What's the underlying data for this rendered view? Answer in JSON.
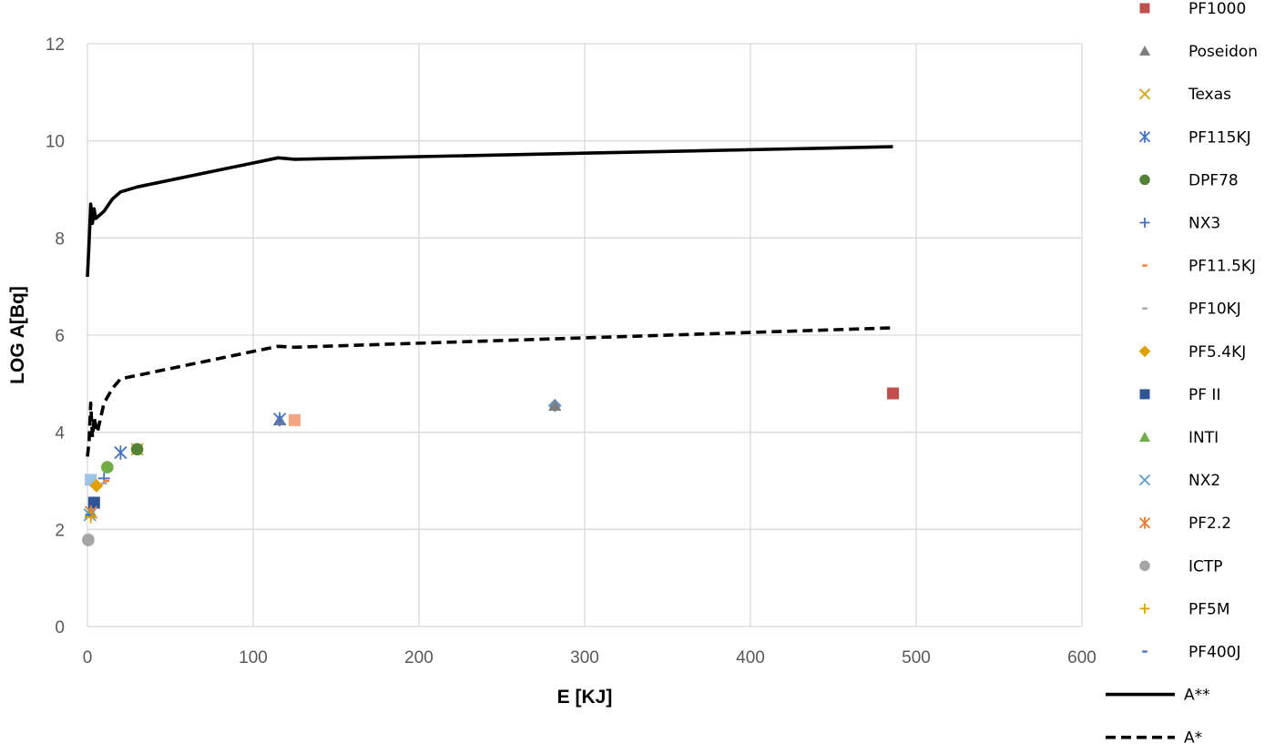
{
  "chart_data": {
    "type": "scatter",
    "title": "",
    "xlabel": "E [KJ]",
    "ylabel": "LOG A[Bq]",
    "xlim": [
      0,
      600
    ],
    "ylim": [
      0,
      12
    ],
    "xticks": [
      0,
      100,
      200,
      300,
      400,
      500,
      600
    ],
    "yticks": [
      0,
      2,
      4,
      6,
      8,
      10,
      12
    ],
    "grid": true,
    "legend_position": "right",
    "series": [
      {
        "name": "PF1000",
        "marker": "square",
        "color": "#c0504d",
        "points": [
          [
            486,
            4.8
          ]
        ]
      },
      {
        "name": "Poseidon",
        "marker": "triangle",
        "color": "#7f7f7f",
        "points": [
          [
            116,
            4.25
          ],
          [
            282,
            4.55
          ]
        ]
      },
      {
        "name": "Texas",
        "marker": "x",
        "color": "#d4a017",
        "points": [
          [
            30,
            3.65
          ]
        ]
      },
      {
        "name": "PF115KJ",
        "marker": "star",
        "color": "#4472c4",
        "points": [
          [
            116,
            4.27
          ],
          [
            20,
            3.58
          ]
        ]
      },
      {
        "name": "DPF78",
        "marker": "circle",
        "color": "#548235",
        "points": [
          [
            30,
            3.65
          ]
        ]
      },
      {
        "name": "NX3",
        "marker": "plus",
        "color": "#4472c4",
        "points": [
          [
            10,
            3.05
          ]
        ]
      },
      {
        "name": "PF11.5KJ",
        "marker": "dash",
        "color": "#ed7d31",
        "points": [
          [
            11.5,
            3.0
          ]
        ]
      },
      {
        "name": "PF10KJ",
        "marker": "dash",
        "color": "#a5a5a5",
        "points": [
          [
            10,
            2.95
          ]
        ]
      },
      {
        "name": "PF5.4KJ",
        "marker": "diamond",
        "color": "#e0a000",
        "points": [
          [
            5.4,
            2.9
          ]
        ]
      },
      {
        "name": "PF II",
        "marker": "square",
        "color": "#2f5597",
        "points": [
          [
            4,
            2.55
          ]
        ]
      },
      {
        "name": "INTI",
        "marker": "triangle",
        "color": "#70ad47",
        "points": [
          [
            2,
            2.35
          ]
        ]
      },
      {
        "name": "NX2",
        "marker": "x",
        "color": "#5b9bd5",
        "points": [
          [
            1.5,
            2.3
          ]
        ]
      },
      {
        "name": "PF2.2",
        "marker": "star",
        "color": "#ed7d31",
        "points": [
          [
            2.2,
            2.35
          ]
        ]
      },
      {
        "name": "ICTP",
        "marker": "circle",
        "color": "#a5a5a5",
        "points": [
          [
            0.5,
            1.78
          ]
        ]
      },
      {
        "name": "PF5M",
        "marker": "plus",
        "color": "#e0a000",
        "points": [
          [
            2,
            2.25
          ]
        ]
      },
      {
        "name": "PF400J",
        "marker": "dash",
        "color": "#4472c4",
        "points": [
          [
            0.4,
            2.3
          ]
        ]
      }
    ],
    "extra_points": [
      {
        "x": 125,
        "y": 4.25,
        "marker": "square",
        "color": "#f4a582"
      },
      {
        "x": 282,
        "y": 4.55,
        "marker": "diamond",
        "color": "#5b9bd5"
      },
      {
        "x": 486,
        "y": 4.8,
        "marker": "square",
        "color": "#548235"
      },
      {
        "x": 12,
        "y": 3.28,
        "marker": "circle",
        "color": "#70ad47"
      },
      {
        "x": 2,
        "y": 3.02,
        "marker": "square",
        "color": "#9dc3e6"
      },
      {
        "x": 0.5,
        "y": 1.8,
        "marker": "circle",
        "color": "#d9d9d9"
      }
    ],
    "lines": [
      {
        "name": "A**",
        "style": "solid",
        "color": "#000000",
        "points": [
          [
            0,
            7.2
          ],
          [
            1,
            7.9
          ],
          [
            1.5,
            8.3
          ],
          [
            2,
            8.7
          ],
          [
            3,
            8.3
          ],
          [
            4,
            8.6
          ],
          [
            5,
            8.4
          ],
          [
            10,
            8.55
          ],
          [
            15,
            8.8
          ],
          [
            20,
            8.95
          ],
          [
            30,
            9.05
          ],
          [
            115,
            9.65
          ],
          [
            125,
            9.62
          ],
          [
            486,
            9.88
          ]
        ]
      },
      {
        "name": "A*",
        "style": "dashed",
        "color": "#000000",
        "points": [
          [
            0,
            3.5
          ],
          [
            1,
            3.8
          ],
          [
            2,
            4.6
          ],
          [
            3,
            3.9
          ],
          [
            4,
            4.3
          ],
          [
            6,
            4.0
          ],
          [
            10,
            4.6
          ],
          [
            15,
            4.9
          ],
          [
            20,
            5.1
          ],
          [
            115,
            5.77
          ],
          [
            125,
            5.75
          ],
          [
            486,
            6.15
          ]
        ]
      }
    ]
  }
}
